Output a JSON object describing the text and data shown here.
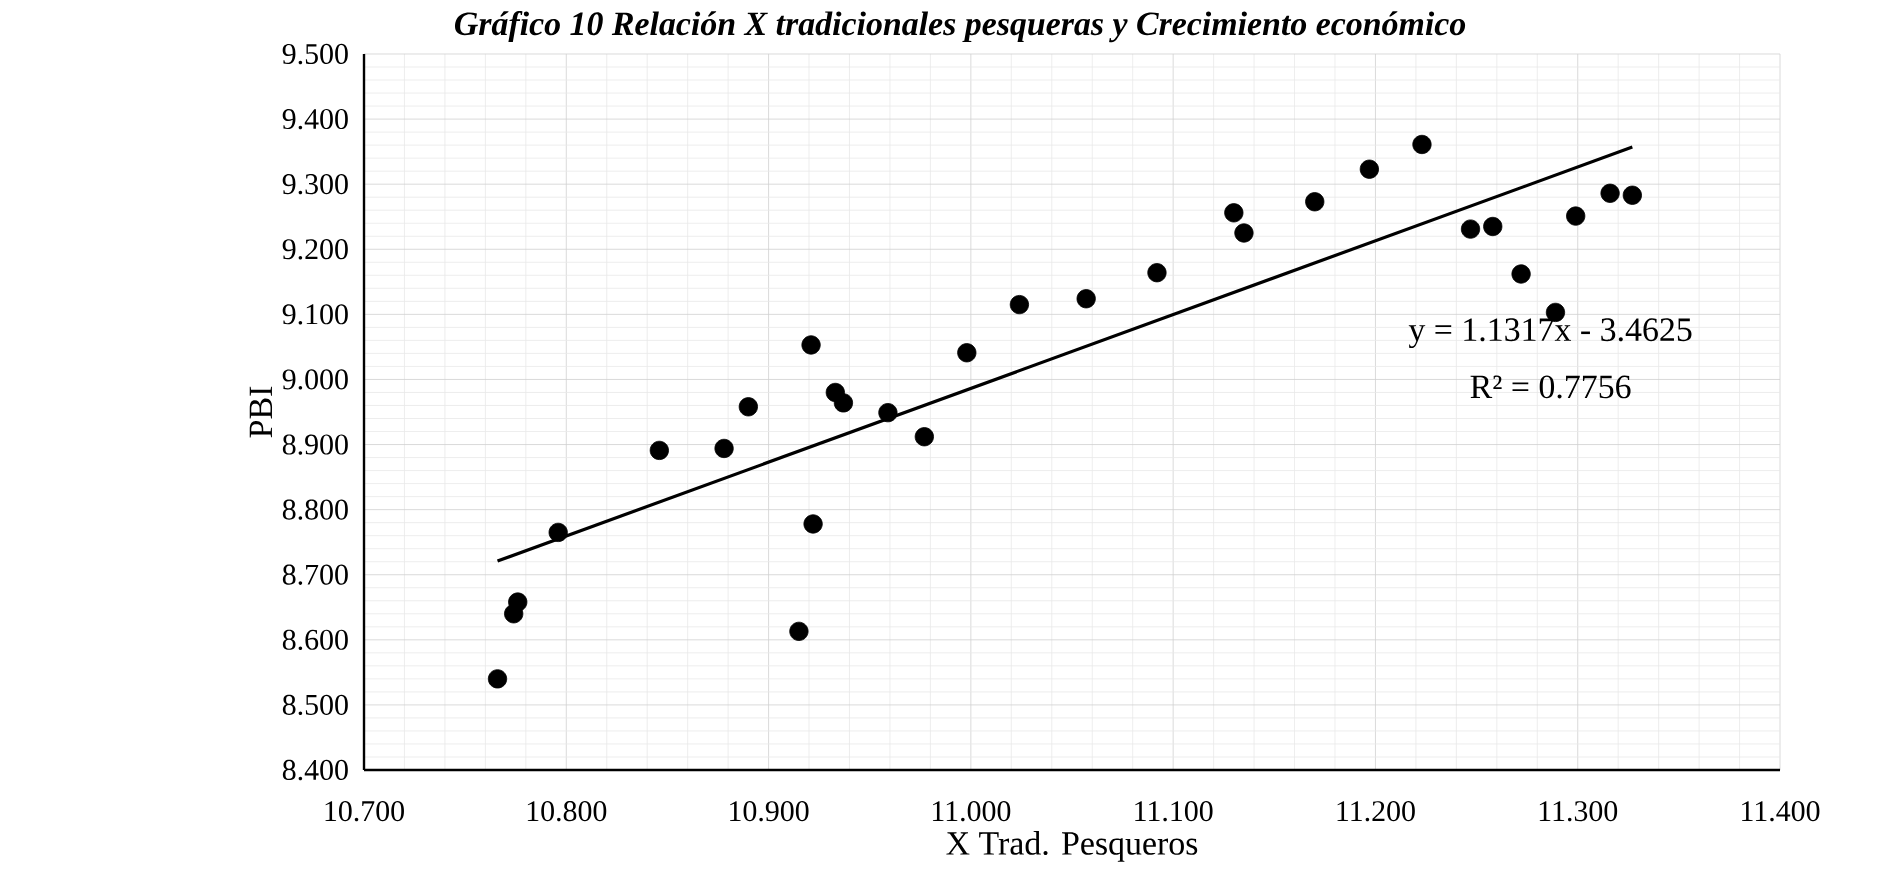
{
  "chart_data": {
    "type": "scatter",
    "title": "Gráfico 10 Relación X tradicionales pesqueras y Crecimiento económico",
    "xlabel": "X Trad. Pesqueros",
    "ylabel": "PBI",
    "xlim": [
      10.7,
      11.4
    ],
    "ylim": [
      8.4,
      9.5
    ],
    "xticks": [
      {
        "value": 10.7,
        "label": "10.700"
      },
      {
        "value": 10.8,
        "label": "10.800"
      },
      {
        "value": 10.9,
        "label": "10.900"
      },
      {
        "value": 11.0,
        "label": "11.000"
      },
      {
        "value": 11.1,
        "label": "11.100"
      },
      {
        "value": 11.2,
        "label": "11.200"
      },
      {
        "value": 11.3,
        "label": "11.300"
      },
      {
        "value": 11.4,
        "label": "11.400"
      }
    ],
    "yticks": [
      {
        "value": 8.4,
        "label": "8.400"
      },
      {
        "value": 8.5,
        "label": "8.500"
      },
      {
        "value": 8.6,
        "label": "8.600"
      },
      {
        "value": 8.7,
        "label": "8.700"
      },
      {
        "value": 8.8,
        "label": "8.800"
      },
      {
        "value": 8.9,
        "label": "8.900"
      },
      {
        "value": 9.0,
        "label": "9.000"
      },
      {
        "value": 9.1,
        "label": "9.100"
      },
      {
        "value": 9.2,
        "label": "9.200"
      },
      {
        "value": 9.3,
        "label": "9.300"
      },
      {
        "value": 9.4,
        "label": "9.400"
      },
      {
        "value": 9.5,
        "label": "9.500"
      }
    ],
    "grid": true,
    "annotations": [
      "y = 1.1317x - 3.4625",
      "R² = 0.7756"
    ],
    "series": [
      {
        "marker": "circle",
        "color": "#000000",
        "x": [
          10.766,
          10.774,
          10.776,
          10.796,
          10.846,
          10.878,
          10.89,
          10.915,
          10.921,
          10.922,
          10.933,
          10.937,
          10.959,
          10.977,
          10.998,
          11.024,
          11.057,
          11.092,
          11.13,
          11.135,
          11.17,
          11.197,
          11.223,
          11.247,
          11.258,
          11.272,
          11.289,
          11.299,
          11.316,
          11.327
        ],
        "values": [
          8.54,
          8.64,
          8.658,
          8.765,
          8.891,
          8.894,
          8.958,
          8.613,
          9.053,
          8.778,
          8.98,
          8.964,
          8.949,
          8.912,
          9.041,
          9.115,
          9.124,
          9.164,
          9.256,
          9.225,
          9.273,
          9.323,
          9.361,
          9.231,
          9.235,
          9.162,
          9.103,
          9.251,
          9.286,
          9.283
        ]
      },
      {
        "type": "line",
        "marker": "none",
        "color": "#000000",
        "x": [
          10.766,
          11.327
        ],
        "values": [
          8.721,
          9.357
        ]
      }
    ]
  }
}
